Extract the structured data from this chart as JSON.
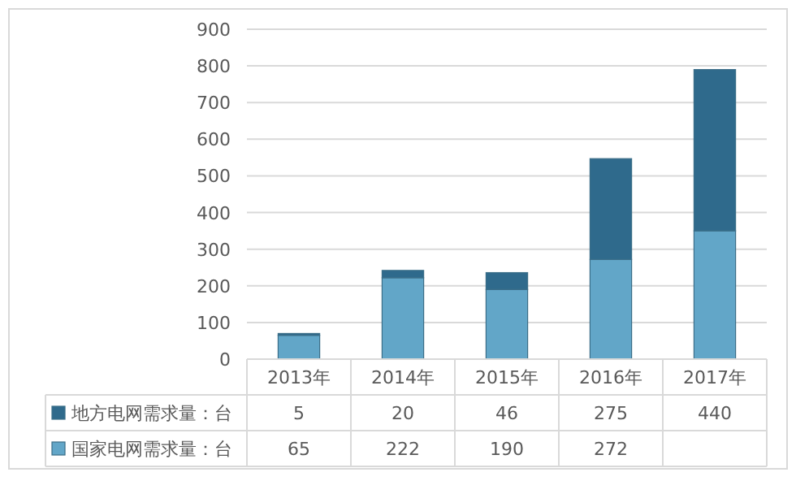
{
  "chart_data": {
    "type": "bar",
    "stacked": true,
    "categories": [
      "2013年",
      "2014年",
      "2015年",
      "2016年",
      "2017年"
    ],
    "series": [
      {
        "name": "国家电网需求量：台",
        "color": "#62a6c8",
        "values": [
          65,
          222,
          190,
          272,
          350
        ],
        "value_labels": [
          "65",
          "222",
          "190",
          "272",
          null
        ]
      },
      {
        "name": "地方电网需求量：台",
        "color": "#2f6a8c",
        "values": [
          5,
          20,
          46,
          275,
          440
        ],
        "value_labels": [
          "5",
          "20",
          "46",
          "275",
          "440"
        ]
      }
    ],
    "ylim": [
      0,
      900
    ],
    "yticks": [
      0,
      100,
      200,
      300,
      400,
      500,
      600,
      700,
      800,
      900
    ],
    "grid": "y",
    "legend": "bottom"
  }
}
